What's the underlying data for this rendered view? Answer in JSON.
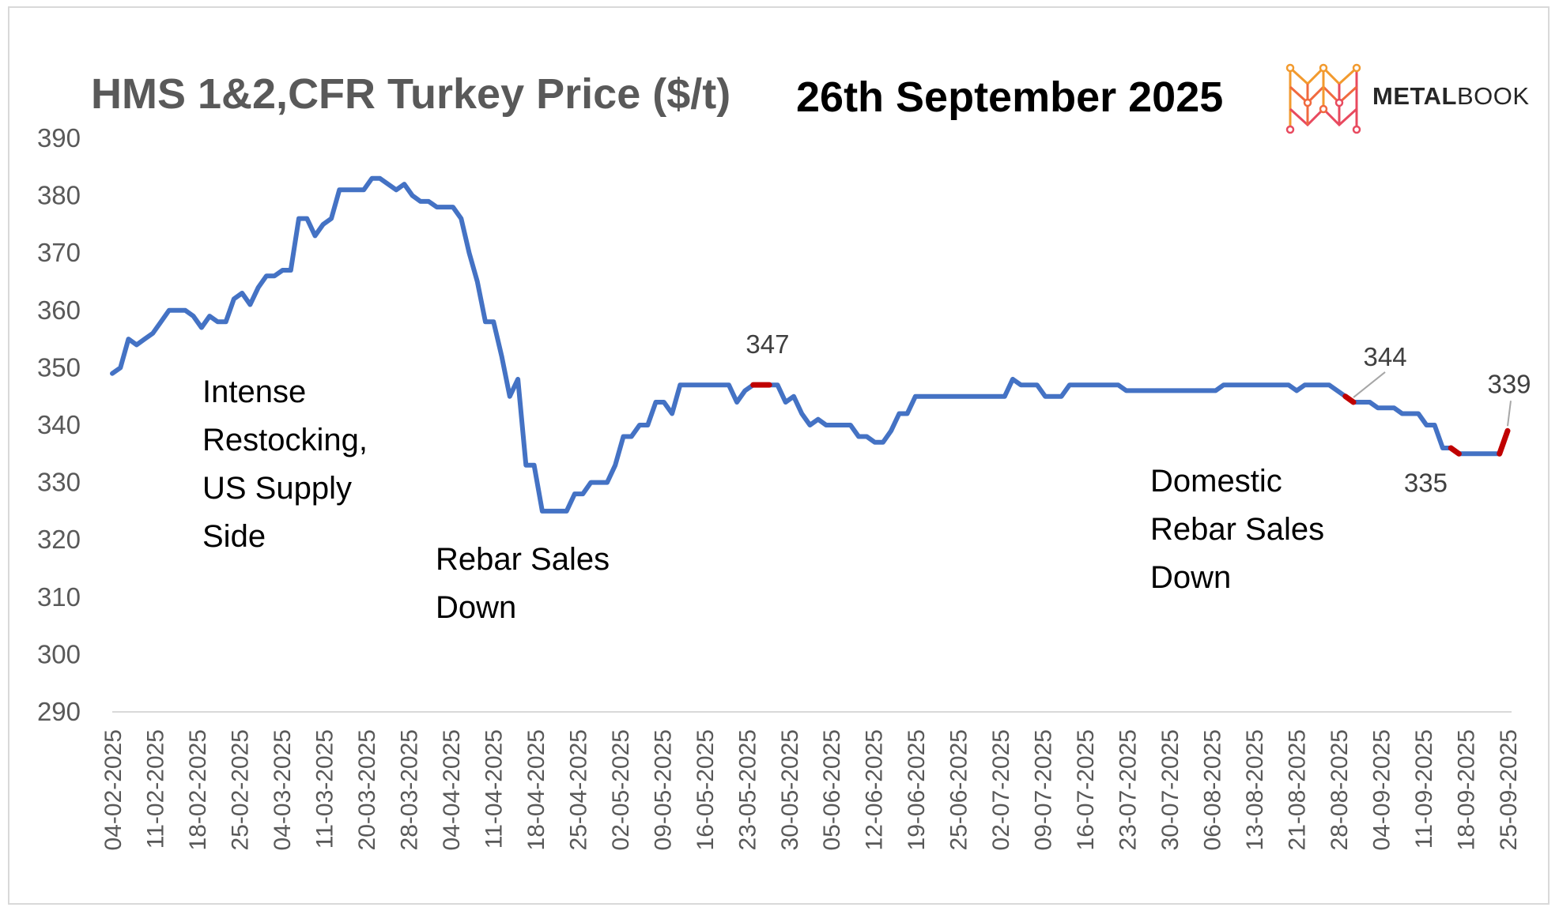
{
  "header": {
    "title": "HMS 1&2,CFR Turkey Price ($/t)",
    "date": "26th September 2025",
    "brand_bold": "METAL",
    "brand_rest": "BOOK"
  },
  "annotations": {
    "restocking": "Intense\nRestocking,\nUS Supply\nSide",
    "rebar_down": "Rebar Sales\nDown",
    "domestic_down": "Domestic\nRebar Sales\nDown"
  },
  "colors": {
    "line": "#4472C4",
    "highlight": "#C00000",
    "axis": "#D9D9D9",
    "text": "#595959"
  },
  "chart_data": {
    "type": "line",
    "title": "HMS 1&2,CFR Turkey Price ($/t)",
    "ylim": [
      290,
      390
    ],
    "yticks": [
      390,
      380,
      370,
      360,
      350,
      340,
      330,
      320,
      310,
      300,
      290
    ],
    "grid": false,
    "x_tick_labels": [
      "04-02-2025",
      "11-02-2025",
      "18-02-2025",
      "25-02-2025",
      "04-03-2025",
      "11-03-2025",
      "20-03-2025",
      "28-03-2025",
      "04-04-2025",
      "11-04-2025",
      "18-04-2025",
      "25-04-2025",
      "02-05-2025",
      "09-05-2025",
      "16-05-2025",
      "23-05-2025",
      "30-05-2025",
      "05-06-2025",
      "12-06-2025",
      "19-06-2025",
      "25-06-2025",
      "02-07-2025",
      "09-07-2025",
      "16-07-2025",
      "23-07-2025",
      "30-07-2025",
      "06-08-2025",
      "13-08-2025",
      "21-08-2025",
      "28-08-2025",
      "04-09-2025",
      "11-09-2025",
      "18-09-2025",
      "25-09-2025"
    ],
    "series": [
      {
        "values": [
          349,
          350,
          355,
          354,
          355,
          356,
          358,
          360,
          360,
          360,
          359,
          357,
          359,
          358,
          358,
          362,
          363,
          361,
          364,
          366,
          366,
          367,
          367,
          376,
          376,
          373,
          375,
          376,
          381,
          381,
          381,
          381,
          383,
          383,
          382,
          381,
          382,
          380,
          379,
          379,
          378,
          378,
          378,
          376,
          370,
          365,
          358,
          358,
          352,
          345,
          348,
          333,
          333,
          325,
          325,
          325,
          325,
          328,
          328,
          330,
          330,
          330,
          333,
          338,
          338,
          340,
          340,
          344,
          344,
          342,
          347,
          347,
          347,
          347,
          347,
          347,
          347,
          344,
          346,
          347,
          347,
          347,
          347,
          344,
          345,
          342,
          340,
          341,
          340,
          340,
          340,
          340,
          338,
          338,
          337,
          337,
          339,
          342,
          342,
          345,
          345,
          345,
          345,
          345,
          345,
          345,
          345,
          345,
          345,
          345,
          345,
          348,
          347,
          347,
          347,
          345,
          345,
          345,
          347,
          347,
          347,
          347,
          347,
          347,
          347,
          346,
          346,
          346,
          346,
          346,
          346,
          346,
          346,
          346,
          346,
          346,
          346,
          347,
          347,
          347,
          347,
          347,
          347,
          347,
          347,
          347,
          346,
          347,
          347,
          347,
          347,
          346,
          345,
          344,
          344,
          344,
          343,
          343,
          343,
          342,
          342,
          342,
          340,
          340,
          336,
          336,
          335,
          335,
          335,
          335,
          335,
          335,
          339
        ]
      }
    ],
    "data_labels": [
      {
        "text": "347",
        "value": 347
      },
      {
        "text": "344",
        "value": 344
      },
      {
        "text": "335",
        "value": 335
      },
      {
        "text": "339",
        "value": 339
      }
    ]
  }
}
